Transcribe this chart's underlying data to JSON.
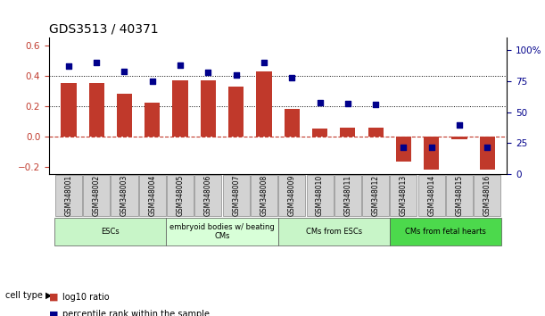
{
  "title": "GDS3513 / 40371",
  "samples": [
    "GSM348001",
    "GSM348002",
    "GSM348003",
    "GSM348004",
    "GSM348005",
    "GSM348006",
    "GSM348007",
    "GSM348008",
    "GSM348009",
    "GSM348010",
    "GSM348011",
    "GSM348012",
    "GSM348013",
    "GSM348014",
    "GSM348015",
    "GSM348016"
  ],
  "log10_ratio": [
    0.35,
    0.35,
    0.28,
    0.22,
    0.37,
    0.37,
    0.33,
    0.43,
    0.18,
    0.05,
    0.06,
    0.06,
    -0.17,
    -0.22,
    -0.02,
    -0.22
  ],
  "percentile_rank": [
    87,
    90,
    83,
    75,
    88,
    82,
    80,
    90,
    78,
    58,
    57,
    56,
    22,
    22,
    40,
    22
  ],
  "cell_types": [
    {
      "label": "ESCs",
      "start": 0,
      "end": 4,
      "color": "#90ee90"
    },
    {
      "label": "embryoid bodies w/ beating\nCMs",
      "start": 4,
      "end": 8,
      "color": "#98fb98"
    },
    {
      "label": "CMs from ESCs",
      "start": 8,
      "end": 12,
      "color": "#90ee90"
    },
    {
      "label": "CMs from fetal hearts",
      "start": 12,
      "end": 16,
      "color": "#32cd32"
    }
  ],
  "bar_color": "#c0392b",
  "scatter_color": "#00008b",
  "ylim_left": [
    -0.25,
    0.65
  ],
  "ylim_right": [
    0,
    110
  ],
  "yticks_left": [
    -0.2,
    0.0,
    0.2,
    0.4,
    0.6
  ],
  "yticks_right": [
    0,
    25,
    50,
    75,
    100
  ],
  "ytick_labels_right": [
    "0",
    "25",
    "50",
    "75",
    "100%"
  ],
  "hlines": [
    0.2,
    0.4
  ],
  "zero_line_y": 0.0,
  "bg_color": "#f0f0f0",
  "legend_items": [
    {
      "label": "log10 ratio",
      "color": "#c0392b",
      "marker": "s"
    },
    {
      "label": "percentile rank within the sample",
      "color": "#00008b",
      "marker": "s"
    }
  ]
}
